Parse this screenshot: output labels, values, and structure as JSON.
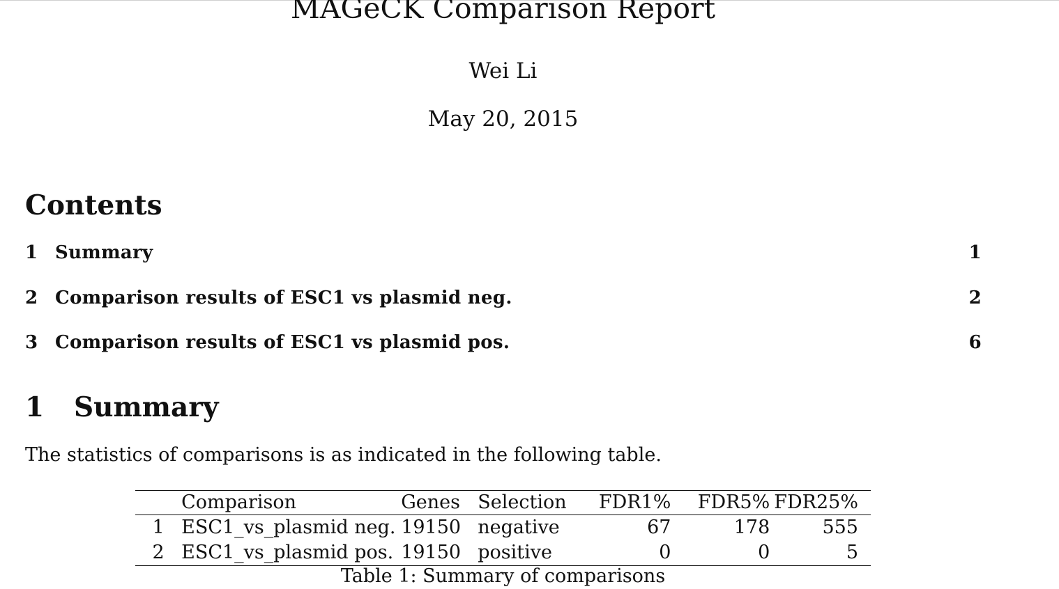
{
  "document": {
    "title": "MAGeCK Comparison Report",
    "author": "Wei Li",
    "date": "May 20, 2015"
  },
  "toc": {
    "heading": "Contents",
    "entries": [
      {
        "number": "1",
        "title": "Summary",
        "page": "1"
      },
      {
        "number": "2",
        "title": "Comparison results of ESC1 vs plasmid neg.",
        "page": "2"
      },
      {
        "number": "3",
        "title": "Comparison results of ESC1 vs plasmid pos.",
        "page": "6"
      }
    ]
  },
  "section": {
    "number": "1",
    "title": "Summary",
    "paragraph": "The statistics of comparisons is as indicated in the following table."
  },
  "summary_table": {
    "headers": {
      "index": "",
      "comparison": "Comparison",
      "genes": "Genes",
      "selection": "Selection",
      "fdr1": "FDR1%",
      "fdr5": "FDR5%",
      "fdr25": "FDR25%"
    },
    "rows": [
      {
        "index": "1",
        "comparison": "ESC1_vs_plasmid neg.",
        "genes": "19150",
        "selection": "negative",
        "fdr1": "67",
        "fdr5": "178",
        "fdr25": "555"
      },
      {
        "index": "2",
        "comparison": "ESC1_vs_plasmid pos.",
        "genes": "19150",
        "selection": "positive",
        "fdr1": "0",
        "fdr5": "0",
        "fdr25": "5"
      }
    ],
    "caption": "Table 1: Summary of comparisons"
  }
}
